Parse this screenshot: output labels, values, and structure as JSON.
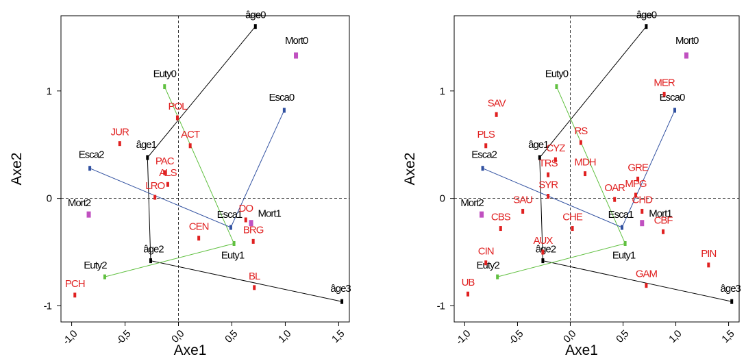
{
  "colors": {
    "age": "#000000",
    "mort": "#c050c0",
    "esca": "#3050a0",
    "euty": "#60c040",
    "species": "#e02020"
  },
  "chart_data": [
    {
      "type": "scatter",
      "title": "",
      "xlabel": "Axe1",
      "ylabel": "Axe2",
      "xlim": [
        -1.1,
        1.6
      ],
      "ylim": [
        -1.15,
        1.7
      ],
      "xticks": [
        -1.0,
        -0.5,
        0.0,
        0.5,
        1.0,
        1.5
      ],
      "xtick_labels": [
        "-1,0",
        "-0,5",
        "0,0",
        "0,5",
        "1,0",
        "1,5"
      ],
      "yticks": [
        -1,
        0,
        1
      ],
      "ytick_labels": [
        "-1",
        "0",
        "1"
      ],
      "grid": false,
      "zero_lines": true,
      "series": [
        {
          "name": "âge",
          "color_key": "age",
          "connect": true,
          "points": [
            {
              "label": "âge0",
              "x": 0.72,
              "y": 1.6
            },
            {
              "label": "âge1",
              "x": -0.29,
              "y": 0.38
            },
            {
              "label": "âge2",
              "x": -0.26,
              "y": -0.58
            },
            {
              "label": "âge3",
              "x": 1.53,
              "y": -0.96
            }
          ]
        },
        {
          "name": "Euty",
          "color_key": "euty",
          "connect": true,
          "points": [
            {
              "label": "Euty0",
              "x": -0.13,
              "y": 1.04
            },
            {
              "label": "Euty1",
              "x": 0.52,
              "y": -0.42
            },
            {
              "label": "Euty2",
              "x": -0.69,
              "y": -0.73
            }
          ]
        },
        {
          "name": "Esca",
          "color_key": "esca",
          "connect": true,
          "points": [
            {
              "label": "Esca0",
              "x": 0.99,
              "y": 0.82
            },
            {
              "label": "Esca1",
              "x": 0.49,
              "y": -0.27
            },
            {
              "label": "Esca2",
              "x": -0.83,
              "y": 0.28
            }
          ]
        },
        {
          "name": "Mort",
          "color_key": "mort",
          "connect": false,
          "points": [
            {
              "label": "Mort0",
              "x": 1.1,
              "y": 1.33
            },
            {
              "label": "Mort1",
              "x": 0.68,
              "y": -0.23
            },
            {
              "label": "Mort2",
              "x": -0.84,
              "y": -0.15
            }
          ]
        },
        {
          "name": "",
          "color_key": "species",
          "connect": false,
          "points": [
            {
              "label": "POL",
              "x": -0.01,
              "y": 0.75
            },
            {
              "label": "ACT",
              "x": 0.11,
              "y": 0.49
            },
            {
              "label": "JUR",
              "x": -0.55,
              "y": 0.51
            },
            {
              "label": "PAC",
              "x": -0.13,
              "y": 0.24
            },
            {
              "label": "ALS",
              "x": -0.1,
              "y": 0.13
            },
            {
              "label": "LRO",
              "x": -0.22,
              "y": 0.01
            },
            {
              "label": "DO",
              "x": 0.63,
              "y": -0.2
            },
            {
              "label": "CEN",
              "x": 0.19,
              "y": -0.37
            },
            {
              "label": "BRG",
              "x": 0.7,
              "y": -0.4
            },
            {
              "label": "BL",
              "x": 0.71,
              "y": -0.83
            },
            {
              "label": "PCH",
              "x": -0.97,
              "y": -0.9
            }
          ]
        }
      ]
    },
    {
      "type": "scatter",
      "title": "",
      "xlabel": "Axe1",
      "ylabel": "Axe2",
      "xlim": [
        -1.1,
        1.6
      ],
      "ylim": [
        -1.15,
        1.7
      ],
      "xticks": [
        -1.0,
        -0.5,
        0.0,
        0.5,
        1.0,
        1.5
      ],
      "xtick_labels": [
        "-1,0",
        "-0,5",
        "0,0",
        "0,5",
        "1,0",
        "1,5"
      ],
      "yticks": [
        -1,
        0,
        1
      ],
      "ytick_labels": [
        "-1",
        "0",
        "1"
      ],
      "grid": false,
      "zero_lines": true,
      "series": [
        {
          "name": "âge",
          "color_key": "age",
          "connect": true,
          "points": [
            {
              "label": "âge0",
              "x": 0.72,
              "y": 1.6
            },
            {
              "label": "âge1",
              "x": -0.29,
              "y": 0.38
            },
            {
              "label": "âge2",
              "x": -0.26,
              "y": -0.58
            },
            {
              "label": "âge3",
              "x": 1.53,
              "y": -0.96
            }
          ]
        },
        {
          "name": "Euty",
          "color_key": "euty",
          "connect": true,
          "points": [
            {
              "label": "Euty0",
              "x": -0.13,
              "y": 1.04
            },
            {
              "label": "Euty1",
              "x": 0.52,
              "y": -0.42
            },
            {
              "label": "Euty2",
              "x": -0.69,
              "y": -0.73
            }
          ]
        },
        {
          "name": "Esca",
          "color_key": "esca",
          "connect": true,
          "points": [
            {
              "label": "Esca0",
              "x": 0.99,
              "y": 0.82
            },
            {
              "label": "Esca1",
              "x": 0.49,
              "y": -0.27
            },
            {
              "label": "Esca2",
              "x": -0.83,
              "y": 0.28
            }
          ]
        },
        {
          "name": "Mort",
          "color_key": "mort",
          "connect": false,
          "points": [
            {
              "label": "Mort0",
              "x": 1.1,
              "y": 1.33
            },
            {
              "label": "Mort1",
              "x": 0.68,
              "y": -0.23
            },
            {
              "label": "Mort2",
              "x": -0.84,
              "y": -0.15
            }
          ]
        },
        {
          "name": "",
          "color_key": "species",
          "connect": false,
          "points": [
            {
              "label": "SAV",
              "x": -0.7,
              "y": 0.78
            },
            {
              "label": "PLS",
              "x": -0.8,
              "y": 0.49
            },
            {
              "label": "CYZ",
              "x": -0.14,
              "y": 0.36
            },
            {
              "label": "RS",
              "x": 0.1,
              "y": 0.52
            },
            {
              "label": "MER",
              "x": 0.89,
              "y": 0.97
            },
            {
              "label": "TRS",
              "x": -0.21,
              "y": 0.22
            },
            {
              "label": "MDH",
              "x": 0.14,
              "y": 0.23
            },
            {
              "label": "SYR",
              "x": -0.21,
              "y": 0.02
            },
            {
              "label": "SAU",
              "x": -0.45,
              "y": -0.12
            },
            {
              "label": "OAR",
              "x": 0.42,
              "y": -0.01
            },
            {
              "label": "GRE",
              "x": 0.64,
              "y": 0.18
            },
            {
              "label": "MPG",
              "x": 0.62,
              "y": 0.03
            },
            {
              "label": "CHD",
              "x": 0.68,
              "y": -0.12
            },
            {
              "label": "CBF",
              "x": 0.88,
              "y": -0.31
            },
            {
              "label": "CBS",
              "x": -0.66,
              "y": -0.28
            },
            {
              "label": "CHE",
              "x": 0.02,
              "y": -0.28
            },
            {
              "label": "AUX",
              "x": -0.26,
              "y": -0.5
            },
            {
              "label": "CIN",
              "x": -0.8,
              "y": -0.6
            },
            {
              "label": "PIN",
              "x": 1.31,
              "y": -0.62
            },
            {
              "label": "UB",
              "x": -0.97,
              "y": -0.89
            },
            {
              "label": "GAM",
              "x": 0.72,
              "y": -0.81
            }
          ]
        }
      ]
    }
  ]
}
